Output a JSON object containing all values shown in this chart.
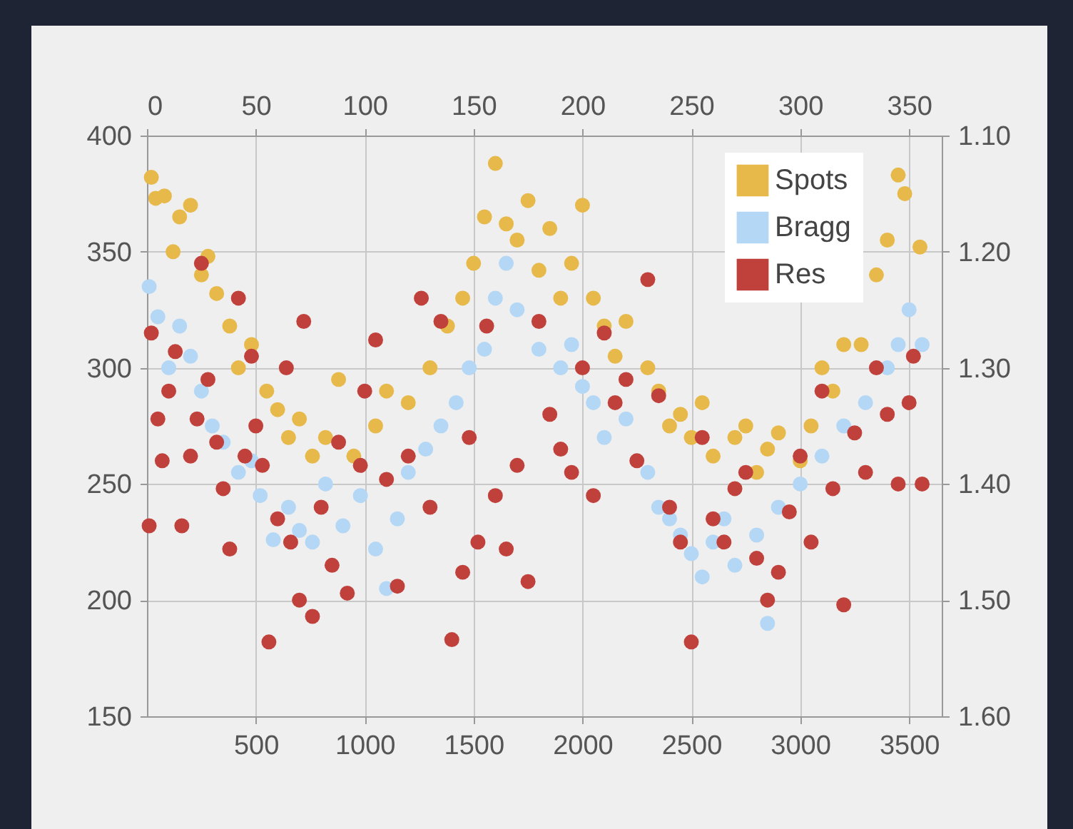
{
  "chart_data": {
    "type": "scatter",
    "xlim": [
      0,
      3650
    ],
    "xticks": [
      500,
      1000,
      1500,
      2000,
      2500,
      3000,
      3500
    ],
    "x2lim": [
      0,
      365
    ],
    "x2ticks": [
      0,
      50,
      100,
      150,
      200,
      250,
      300,
      350
    ],
    "ylim": [
      150,
      400
    ],
    "yticks": [
      150,
      200,
      250,
      300,
      350,
      400
    ],
    "y2lim": [
      1.6,
      1.1
    ],
    "y2ticks": [
      {
        "value": 1.1,
        "label": "1.10"
      },
      {
        "value": 1.2,
        "label": "1.20"
      },
      {
        "value": 1.3,
        "label": "1.30"
      },
      {
        "value": 1.4,
        "label": "1.40"
      },
      {
        "value": 1.5,
        "label": "1.50"
      },
      {
        "value": 1.6,
        "label": "1.60"
      }
    ],
    "grid": true,
    "legend": "top right",
    "marker": "circle",
    "series": [
      {
        "name": "Spots",
        "color": "#e6b94a",
        "x": [
          20,
          40,
          80,
          120,
          150,
          200,
          250,
          280,
          320,
          380,
          420,
          480,
          550,
          600,
          650,
          700,
          760,
          820,
          880,
          950,
          1050,
          1100,
          1200,
          1300,
          1380,
          1450,
          1500,
          1550,
          1600,
          1650,
          1700,
          1750,
          1800,
          1850,
          1900,
          1950,
          2000,
          2050,
          2100,
          2150,
          2200,
          2300,
          2350,
          2400,
          2450,
          2500,
          2550,
          2600,
          2700,
          2750,
          2800,
          2850,
          2900,
          3000,
          3050,
          3100,
          3150,
          3200,
          3280,
          3350,
          3400,
          3450,
          3480,
          3550
        ],
        "values": [
          382,
          373,
          374,
          350,
          365,
          370,
          340,
          348,
          332,
          318,
          300,
          310,
          290,
          282,
          270,
          278,
          262,
          270,
          295,
          262,
          275,
          290,
          285,
          300,
          318,
          330,
          345,
          365,
          388,
          362,
          355,
          372,
          342,
          360,
          330,
          345,
          370,
          330,
          318,
          305,
          320,
          300,
          290,
          275,
          280,
          270,
          285,
          262,
          270,
          275,
          255,
          265,
          272,
          260,
          275,
          300,
          290,
          310,
          310,
          340,
          355,
          383,
          375,
          352
        ]
      },
      {
        "name": "Bragg",
        "color": "#b3d7f5",
        "x": [
          10,
          50,
          100,
          150,
          200,
          250,
          300,
          350,
          420,
          480,
          520,
          580,
          650,
          700,
          760,
          820,
          900,
          980,
          1050,
          1100,
          1150,
          1200,
          1280,
          1350,
          1420,
          1480,
          1550,
          1600,
          1650,
          1700,
          1800,
          1900,
          1950,
          2000,
          2050,
          2100,
          2200,
          2300,
          2350,
          2400,
          2450,
          2500,
          2550,
          2600,
          2650,
          2700,
          2800,
          2850,
          2900,
          3000,
          3100,
          3200,
          3300,
          3400,
          3450,
          3500,
          3560
        ],
        "values": [
          335,
          322,
          300,
          318,
          305,
          290,
          275,
          268,
          255,
          260,
          245,
          226,
          240,
          230,
          225,
          250,
          232,
          245,
          222,
          205,
          235,
          255,
          265,
          275,
          285,
          300,
          308,
          330,
          345,
          325,
          308,
          300,
          310,
          292,
          285,
          270,
          278,
          255,
          240,
          235,
          228,
          220,
          210,
          225,
          235,
          215,
          228,
          190,
          240,
          250,
          262,
          275,
          285,
          300,
          310,
          325,
          310
        ]
      },
      {
        "name": "Res",
        "color": "#c0413b",
        "x": [
          10,
          20,
          50,
          70,
          100,
          130,
          160,
          200,
          230,
          250,
          280,
          320,
          350,
          380,
          420,
          450,
          480,
          500,
          530,
          560,
          600,
          640,
          660,
          700,
          720,
          760,
          800,
          850,
          880,
          920,
          980,
          1000,
          1050,
          1100,
          1150,
          1200,
          1260,
          1300,
          1350,
          1400,
          1450,
          1480,
          1520,
          1560,
          1600,
          1650,
          1700,
          1750,
          1800,
          1850,
          1900,
          1950,
          2000,
          2050,
          2100,
          2150,
          2200,
          2250,
          2300,
          2350,
          2400,
          2450,
          2500,
          2550,
          2600,
          2650,
          2700,
          2750,
          2800,
          2850,
          2900,
          2950,
          3000,
          3050,
          3100,
          3150,
          3200,
          3250,
          3300,
          3350,
          3400,
          3450,
          3500,
          3520,
          3560
        ],
        "values": [
          232,
          315,
          278,
          260,
          290,
          307,
          232,
          262,
          278,
          345,
          295,
          268,
          248,
          222,
          330,
          262,
          305,
          275,
          258,
          182,
          235,
          300,
          225,
          200,
          320,
          193,
          240,
          215,
          268,
          203,
          258,
          290,
          312,
          252,
          206,
          262,
          330,
          240,
          320,
          183,
          212,
          270,
          225,
          318,
          245,
          222,
          258,
          208,
          320,
          280,
          265,
          255,
          300,
          245,
          315,
          285,
          295,
          260,
          338,
          288,
          240,
          225,
          182,
          270,
          235,
          225,
          248,
          255,
          218,
          200,
          212,
          238,
          262,
          225,
          290,
          248,
          198,
          272,
          255,
          300,
          280,
          250,
          285,
          305,
          250
        ]
      }
    ]
  }
}
